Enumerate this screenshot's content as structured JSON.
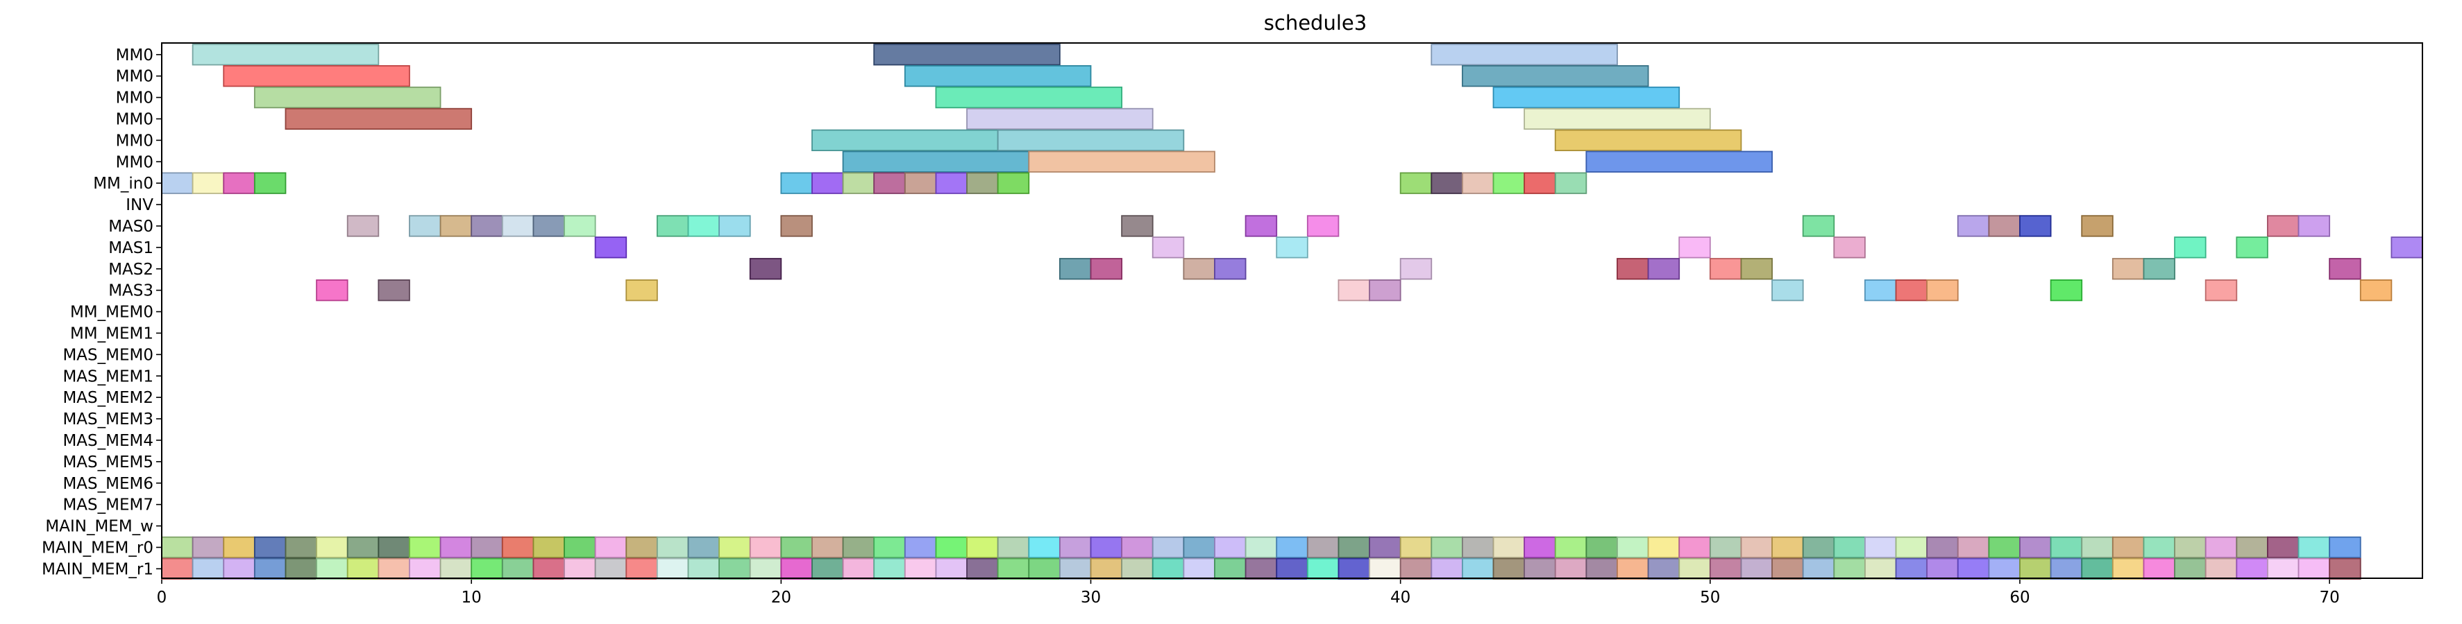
{
  "chart_data": {
    "type": "gantt",
    "title": "schedule3",
    "xlabel": "",
    "ylabel": "",
    "xlim": [
      0,
      73
    ],
    "xticks": [
      "0",
      "10",
      "20",
      "30",
      "40",
      "50",
      "60",
      "70"
    ],
    "grid": false,
    "rows": [
      "MM0",
      "MM0",
      "MM0",
      "MM0",
      "MM0",
      "MM0",
      "MM_in0",
      "INV",
      "MAS0",
      "MAS1",
      "MAS2",
      "MAS3",
      "MM_MEM0",
      "MM_MEM1",
      "MAS_MEM0",
      "MAS_MEM1",
      "MAS_MEM2",
      "MAS_MEM3",
      "MAS_MEM4",
      "MAS_MEM5",
      "MAS_MEM6",
      "MAS_MEM7",
      "MAIN_MEM_w",
      "MAIN_MEM_r0",
      "MAIN_MEM_r1"
    ],
    "tasks": [
      {
        "row": 0,
        "start": 1,
        "end": 7,
        "color": "#9fdcd7"
      },
      {
        "row": 0,
        "start": 23,
        "end": 29,
        "color": "#3e5a8a"
      },
      {
        "row": 0,
        "start": 41,
        "end": 47,
        "color": "#a8c6ec"
      },
      {
        "row": 1,
        "start": 2,
        "end": 8,
        "color": "#ff5c5c"
      },
      {
        "row": 1,
        "start": 24,
        "end": 30,
        "color": "#3cb4d4"
      },
      {
        "row": 1,
        "start": 42,
        "end": 48,
        "color": "#4c98b2"
      },
      {
        "row": 2,
        "start": 3,
        "end": 9,
        "color": "#a4d48c"
      },
      {
        "row": 2,
        "start": 25,
        "end": 31,
        "color": "#46e6a6"
      },
      {
        "row": 2,
        "start": 43,
        "end": 49,
        "color": "#3cbcf0"
      },
      {
        "row": 3,
        "start": 4,
        "end": 10,
        "color": "#c0584e"
      },
      {
        "row": 3,
        "start": 26,
        "end": 32,
        "color": "#c8c4ec"
      },
      {
        "row": 3,
        "start": 44,
        "end": 50,
        "color": "#e6f0c4"
      },
      {
        "row": 4,
        "start": 21,
        "end": 27,
        "color": "#62c8c6"
      },
      {
        "row": 4,
        "start": 27,
        "end": 33,
        "color": "#7ccad4"
      },
      {
        "row": 4,
        "start": 45,
        "end": 51,
        "color": "#e2be48"
      },
      {
        "row": 5,
        "start": 22,
        "end": 28,
        "color": "#3ea6c6"
      },
      {
        "row": 5,
        "start": 28,
        "end": 34,
        "color": "#eeb48c"
      },
      {
        "row": 5,
        "start": 46,
        "end": 52,
        "color": "#4a7ce6"
      },
      {
        "row": 6,
        "start": 0,
        "end": 1,
        "color": "#a8c6ec"
      },
      {
        "row": 6,
        "start": 1,
        "end": 2,
        "color": "#f8f4b4"
      },
      {
        "row": 6,
        "start": 2,
        "end": 3,
        "color": "#e04cb2"
      },
      {
        "row": 6,
        "start": 3,
        "end": 4,
        "color": "#46d246"
      },
      {
        "row": 6,
        "start": 20,
        "end": 21,
        "color": "#46bce6"
      },
      {
        "row": 6,
        "start": 21,
        "end": 22,
        "color": "#8a46f0"
      },
      {
        "row": 6,
        "start": 22,
        "end": 23,
        "color": "#aed48c"
      },
      {
        "row": 6,
        "start": 23,
        "end": 24,
        "color": "#ac4a86"
      },
      {
        "row": 6,
        "start": 24,
        "end": 25,
        "color": "#bc8c7c"
      },
      {
        "row": 6,
        "start": 25,
        "end": 26,
        "color": "#8c52f4"
      },
      {
        "row": 6,
        "start": 26,
        "end": 27,
        "color": "#8a986a"
      },
      {
        "row": 6,
        "start": 27,
        "end": 28,
        "color": "#5ed23c"
      },
      {
        "row": 6,
        "start": 40,
        "end": 41,
        "color": "#84d454"
      },
      {
        "row": 6,
        "start": 41,
        "end": 42,
        "color": "#523a5a"
      },
      {
        "row": 6,
        "start": 42,
        "end": 43,
        "color": "#e4b8a6"
      },
      {
        "row": 6,
        "start": 43,
        "end": 44,
        "color": "#72f05e"
      },
      {
        "row": 6,
        "start": 44,
        "end": 45,
        "color": "#e64646"
      },
      {
        "row": 6,
        "start": 45,
        "end": 46,
        "color": "#80d4a0"
      },
      {
        "row": 8,
        "start": 6,
        "end": 7,
        "color": "#c4a8b8"
      },
      {
        "row": 8,
        "start": 8,
        "end": 9,
        "color": "#a4d0de"
      },
      {
        "row": 8,
        "start": 9,
        "end": 10,
        "color": "#cca872"
      },
      {
        "row": 8,
        "start": 10,
        "end": 11,
        "color": "#8474a6"
      },
      {
        "row": 8,
        "start": 11,
        "end": 12,
        "color": "#c8dcea"
      },
      {
        "row": 8,
        "start": 12,
        "end": 13,
        "color": "#6a82a4"
      },
      {
        "row": 8,
        "start": 13,
        "end": 14,
        "color": "#a8f0b4"
      },
      {
        "row": 8,
        "start": 16,
        "end": 17,
        "color": "#5ed8a0"
      },
      {
        "row": 8,
        "start": 17,
        "end": 18,
        "color": "#62f4cc"
      },
      {
        "row": 8,
        "start": 18,
        "end": 19,
        "color": "#82d4e8"
      },
      {
        "row": 8,
        "start": 20,
        "end": 21,
        "color": "#a8745c"
      },
      {
        "row": 8,
        "start": 31,
        "end": 32,
        "color": "#7c6c70"
      },
      {
        "row": 8,
        "start": 35,
        "end": 36,
        "color": "#b24cd6"
      },
      {
        "row": 8,
        "start": 37,
        "end": 38,
        "color": "#f270e4"
      },
      {
        "row": 8,
        "start": 53,
        "end": 54,
        "color": "#5edc8c"
      },
      {
        "row": 8,
        "start": 58,
        "end": 59,
        "color": "#a890e6"
      },
      {
        "row": 8,
        "start": 59,
        "end": 60,
        "color": "#b47c84"
      },
      {
        "row": 8,
        "start": 60,
        "end": 61,
        "color": "#2c3cc4"
      },
      {
        "row": 8,
        "start": 62,
        "end": 63,
        "color": "#b88a48"
      },
      {
        "row": 8,
        "start": 68,
        "end": 69,
        "color": "#d86a88"
      },
      {
        "row": 8,
        "start": 69,
        "end": 70,
        "color": "#c088ea"
      },
      {
        "row": 9,
        "start": 14,
        "end": 15,
        "color": "#7c3cf0"
      },
      {
        "row": 9,
        "start": 32,
        "end": 33,
        "color": "#e0b4ec"
      },
      {
        "row": 9,
        "start": 36,
        "end": 37,
        "color": "#94e4f0"
      },
      {
        "row": 9,
        "start": 49,
        "end": 50,
        "color": "#f8a8f4"
      },
      {
        "row": 9,
        "start": 54,
        "end": 55,
        "color": "#e698c4"
      },
      {
        "row": 9,
        "start": 65,
        "end": 66,
        "color": "#4cf0b4"
      },
      {
        "row": 9,
        "start": 67,
        "end": 68,
        "color": "#52e884"
      },
      {
        "row": 9,
        "start": 72,
        "end": 73,
        "color": "#9a6cf0"
      },
      {
        "row": 10,
        "start": 19,
        "end": 20,
        "color": "#5c2c64"
      },
      {
        "row": 10,
        "start": 29,
        "end": 30,
        "color": "#4c8c9c"
      },
      {
        "row": 10,
        "start": 30,
        "end": 31,
        "color": "#b23c80"
      },
      {
        "row": 10,
        "start": 33,
        "end": 34,
        "color": "#c49c8c"
      },
      {
        "row": 10,
        "start": 34,
        "end": 35,
        "color": "#7c5cd4"
      },
      {
        "row": 10,
        "start": 40,
        "end": 41,
        "color": "#dcbce4"
      },
      {
        "row": 10,
        "start": 47,
        "end": 48,
        "color": "#b83c52"
      },
      {
        "row": 10,
        "start": 48,
        "end": 49,
        "color": "#8c4cbc"
      },
      {
        "row": 10,
        "start": 50,
        "end": 51,
        "color": "#f87c7c"
      },
      {
        "row": 10,
        "start": 51,
        "end": 52,
        "color": "#a09c54"
      },
      {
        "row": 10,
        "start": 63,
        "end": 64,
        "color": "#dcac88"
      },
      {
        "row": 10,
        "start": 64,
        "end": 65,
        "color": "#5cb09c"
      },
      {
        "row": 10,
        "start": 70,
        "end": 71,
        "color": "#b43c94"
      },
      {
        "row": 11,
        "start": 5,
        "end": 6,
        "color": "#f452bc"
      },
      {
        "row": 11,
        "start": 7,
        "end": 8,
        "color": "#7c5c74"
      },
      {
        "row": 11,
        "start": 15,
        "end": 16,
        "color": "#e4c050"
      },
      {
        "row": 11,
        "start": 38,
        "end": 39,
        "color": "#f8c4cc"
      },
      {
        "row": 11,
        "start": 39,
        "end": 40,
        "color": "#c088c4"
      },
      {
        "row": 11,
        "start": 52,
        "end": 53,
        "color": "#94d4e4"
      },
      {
        "row": 11,
        "start": 55,
        "end": 56,
        "color": "#70c4f4"
      },
      {
        "row": 11,
        "start": 56,
        "end": 57,
        "color": "#e85454"
      },
      {
        "row": 11,
        "start": 57,
        "end": 58,
        "color": "#f8a86c"
      },
      {
        "row": 11,
        "start": 61,
        "end": 62,
        "color": "#38e444"
      },
      {
        "row": 11,
        "start": 66,
        "end": 67,
        "color": "#f88c8c"
      },
      {
        "row": 11,
        "start": 71,
        "end": 72,
        "color": "#f8a850"
      }
    ],
    "dense_rows": [
      {
        "row": 23,
        "colors": [
          "#a8d888",
          "#b494b4",
          "#e4bc4c",
          "#3c5ca8",
          "#6c845c",
          "#e0f094",
          "#6c946c",
          "#4c6c54",
          "#94f454",
          "#c868d8",
          "#a07ca4",
          "#e45c48",
          "#b8b83c",
          "#4cc84c",
          "#f0a0e4",
          "#b8a05c",
          "#a8dcbc",
          "#6ca4b4",
          "#ccf06c",
          "#f8acc4",
          "#6cc86c",
          "#c89c84",
          "#7c9c6c",
          "#5ce478",
          "#7c8cf0",
          "#54f054",
          "#c4f454",
          "#a4cca4",
          "#54e4f4",
          "#b888d4",
          "#7c54ec",
          "#c47cd4",
          "#a4bce4",
          "#5c9cc4",
          "#c0acf8",
          "#b8e8cc",
          "#5cacf0",
          "#a0949c",
          "#5c8c6c",
          "#7c54a4",
          "#e0d070",
          "#94d494",
          "#a4a4a0",
          "#e4dcb0",
          "#c044dc",
          "#94ec6c",
          "#58b458",
          "#b4f0b4",
          "#f8e87c",
          "#f07cc4",
          "#a0c4a4",
          "#e0b4a4",
          "#e4bc5c",
          "#64a484",
          "#64d4a4",
          "#cccdf8",
          "#ccf0ac",
          "#946ca0",
          "#d094b0",
          "#54cc54",
          "#a070c0",
          "#5cd4a4",
          "#a8d4ac",
          "#d0a06c",
          "#7cdcac",
          "#acc494",
          "#e094dc",
          "#a0a080",
          "#8c3c6c",
          "#6ce4d8",
          "#4c8ce8"
        ]
      },
      {
        "row": 24,
        "colors": [
          "#f07070",
          "#a8c4ec",
          "#c8a0f0",
          "#5484cc",
          "#5c7c54",
          "#b0f0b0",
          "#c4e85c",
          "#f4b098",
          "#f0b4f0",
          "#ccdcb8",
          "#54e454",
          "#6cc47c",
          "#d04c6c",
          "#f4b4dc",
          "#bcbcc0",
          "#f46c6c",
          "#d4f0ec",
          "#9ce0c4",
          "#6ccc84",
          "#c4e8c4",
          "#e044c4",
          "#4c9c7c",
          "#f0a4d4",
          "#7ce4c4",
          "#f8bce8",
          "#dcb4f4",
          "#6c4c7c",
          "#6cd46c",
          "#5ccc64",
          "#a4bcd4",
          "#dcb45c",
          "#b4c8a4",
          "#4cd4b4",
          "#c4c4f8",
          "#5cc47c",
          "#7c5484",
          "#3c3cbc",
          "#4cf0c4",
          "#3c3cc4",
          "#f4f0e4",
          "#b47c84",
          "#c4a4f0",
          "#7ccce4",
          "#8c7c5c",
          "#9c7c9c",
          "#d494b4",
          "#8c6c8c",
          "#f4a474",
          "#7c7cb4",
          "#d4e4a4",
          "#b4648c",
          "#b49cc4",
          "#b47c6c",
          "#8cb4dc",
          "#8cd48c",
          "#d4e4b4",
          "#6c6ce4",
          "#9c6ce4",
          "#7c5cf4",
          "#8c9cf4",
          "#a4c44c",
          "#6c8cdc",
          "#3cac84",
          "#f4cc6c",
          "#f46cd4",
          "#7cb47c",
          "#e4b4b4",
          "#c46cf4",
          "#f4c4f4",
          "#f4acf4",
          "#a44c5c"
        ]
      }
    ]
  }
}
